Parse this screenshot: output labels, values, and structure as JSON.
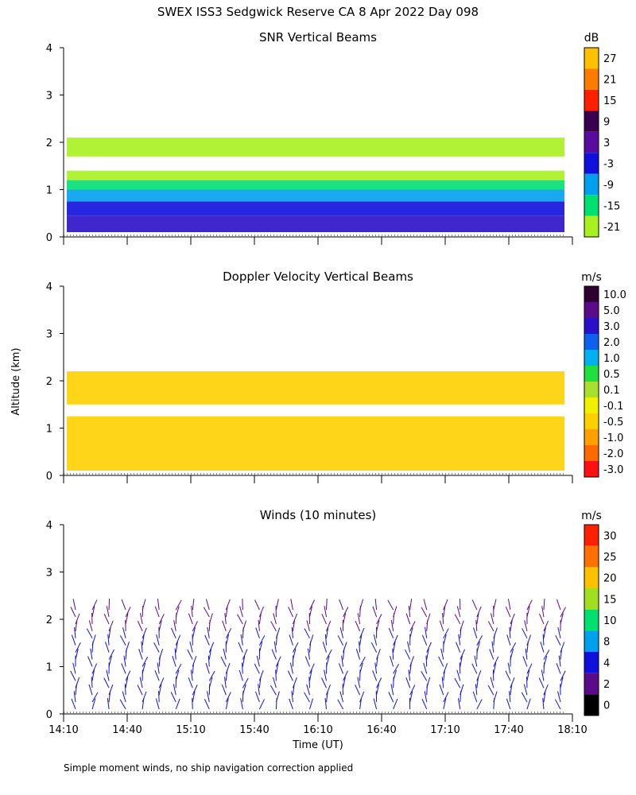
{
  "figure": {
    "title": "SWEX ISS3 Sedgwick Reserve CA   8 Apr 2022 Day 098",
    "shared_ylabel": "Altitude (km)",
    "xlabel": "Time (UT)",
    "footnote": "Simple moment winds, no ship navigation correction applied"
  },
  "chart_data": [
    {
      "type": "heatmap",
      "title": "SNR Vertical Beams",
      "xlabel": "Time (UT)",
      "ylabel": "Altitude (km)",
      "xlim": [
        "14:10",
        "18:10"
      ],
      "ylim": [
        0,
        4
      ],
      "yticks": [
        "0",
        "1",
        "2",
        "3",
        "4"
      ],
      "colorbar_unit": "dB",
      "colorbar_labels": [
        "27",
        "21",
        "15",
        "9",
        "3",
        "-3",
        "-9",
        "-15",
        "-21"
      ],
      "colorbar_colors": [
        "#ffc000",
        "#ff7a00",
        "#ff2000",
        "#3a0050",
        "#5a0aa0",
        "#1010dd",
        "#00a0f0",
        "#00e070",
        "#a8f020"
      ],
      "layers": [
        {
          "alt_from": 0.1,
          "alt_to": 0.45,
          "class": "3 to 9",
          "color": "#2a10c8"
        },
        {
          "alt_from": 0.45,
          "alt_to": 0.75,
          "class": "-3 to 3",
          "color": "#1010dd"
        },
        {
          "alt_from": 0.75,
          "alt_to": 1.0,
          "class": "-9 to -3",
          "color": "#00a0f0"
        },
        {
          "alt_from": 1.0,
          "alt_to": 1.2,
          "class": "-15 to -9",
          "color": "#00e070"
        },
        {
          "alt_from": 1.2,
          "alt_to": 1.4,
          "class": "-21 to -15",
          "color": "#a8f020"
        },
        {
          "alt_from": 1.7,
          "alt_to": 2.1,
          "class": "-21 to -15",
          "color": "#a8f020"
        }
      ]
    },
    {
      "type": "heatmap",
      "title": "Doppler Velocity Vertical Beams",
      "xlabel": "Time (UT)",
      "ylabel": "Altitude (km)",
      "xlim": [
        "14:10",
        "18:10"
      ],
      "ylim": [
        0,
        4
      ],
      "yticks": [
        "0",
        "1",
        "2",
        "3",
        "4"
      ],
      "colorbar_unit": "m/s",
      "colorbar_labels": [
        "10.0",
        "5.0",
        "3.0",
        "2.0",
        "1.0",
        "0.5",
        "0.1",
        "-0.1",
        "-0.5",
        "-1.0",
        "-2.0",
        "-3.0"
      ],
      "colorbar_colors": [
        "#300030",
        "#5a0a8a",
        "#2a10c8",
        "#1060f0",
        "#00b0f0",
        "#20e040",
        "#a8e030",
        "#f0f000",
        "#ffd000",
        "#ffa000",
        "#ff6a00",
        "#ff1010"
      ],
      "layers": [
        {
          "alt_from": 0.1,
          "alt_to": 1.25,
          "class": "-0.5 to -0.1",
          "color": "#ffd000"
        },
        {
          "alt_from": 1.5,
          "alt_to": 2.2,
          "class": "-0.5 to -0.1",
          "color": "#ffd000"
        }
      ]
    },
    {
      "type": "wind barbs",
      "title": "Winds (10 minutes)",
      "xlabel": "Time (UT)",
      "ylabel": "Altitude (km)",
      "xlim": [
        "14:10",
        "18:10"
      ],
      "ylim": [
        0,
        4
      ],
      "yticks": [
        "0",
        "1",
        "2",
        "3",
        "4"
      ],
      "xticks": [
        "14:10",
        "14:40",
        "15:10",
        "15:40",
        "16:10",
        "16:40",
        "17:10",
        "17:40",
        "18:10"
      ],
      "colorbar_unit": "m/s",
      "colorbar_labels": [
        "30",
        "25",
        "20",
        "15",
        "10",
        "8",
        "4",
        "2",
        "0"
      ],
      "colorbar_colors": [
        "#ff2000",
        "#ff7000",
        "#ffc000",
        "#a0e020",
        "#00e070",
        "#00a0f0",
        "#1010dd",
        "#5a0a8a",
        "#000000"
      ],
      "barb_count": 30,
      "barb_alt_range_km": [
        0.1,
        2.3
      ],
      "dominant_speed_class": "4 to 8"
    }
  ]
}
